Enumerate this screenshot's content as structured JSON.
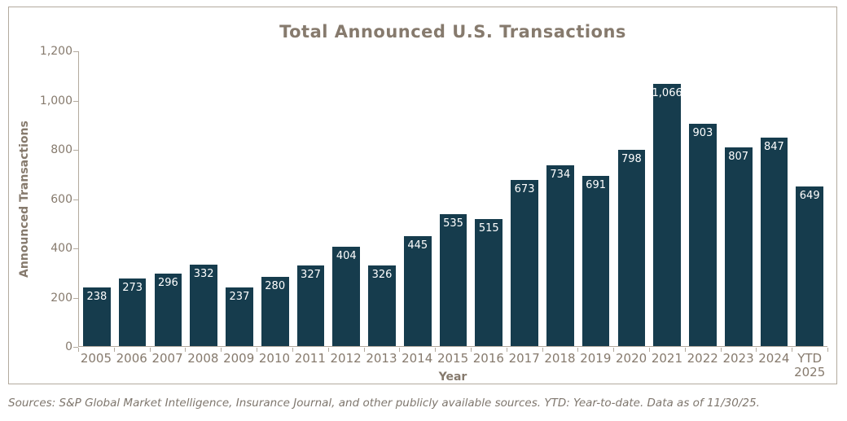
{
  "title": "Total Announced U.S. Transactions",
  "source_note": "Sources: S&P Global Market Intelligence, Insurance Journal, and other publicly available sources. YTD: Year-to-date. Data as of 11/30/25.",
  "colors": {
    "bar_fill": "#163c4d",
    "bar_value_label": "#ffffff",
    "text": "#867a6d",
    "axis_line": "#b3aa9e",
    "frame_border": "#b3aa9e",
    "background": "#ffffff"
  },
  "chart_data": {
    "type": "bar",
    "title": "Total Announced U.S. Transactions",
    "xlabel": "Year",
    "ylabel": "Announced Transactions",
    "categories": [
      "2005",
      "2006",
      "2007",
      "2008",
      "2009",
      "2010",
      "2011",
      "2012",
      "2013",
      "2014",
      "2015",
      "2016",
      "2017",
      "2018",
      "2019",
      "2020",
      "2021",
      "2022",
      "2023",
      "2024",
      "YTD\n2025"
    ],
    "values": [
      238,
      273,
      296,
      332,
      237,
      280,
      327,
      404,
      326,
      445,
      535,
      515,
      673,
      734,
      691,
      798,
      1066,
      903,
      807,
      847,
      649
    ],
    "value_labels": [
      "238",
      "273",
      "296",
      "332",
      "237",
      "280",
      "327",
      "404",
      "326",
      "445",
      "535",
      "515",
      "673",
      "734",
      "691",
      "798",
      "1,066",
      "903",
      "807",
      "847",
      "649"
    ],
    "ylim": [
      0,
      1200
    ],
    "yticks": [
      0,
      200,
      400,
      600,
      800,
      1000,
      1200
    ],
    "ytick_labels": [
      "0",
      "200",
      "400",
      "600",
      "800",
      "1,000",
      "1,200"
    ],
    "grid": false,
    "legend": "none",
    "value_labels_position": "inside-top"
  }
}
